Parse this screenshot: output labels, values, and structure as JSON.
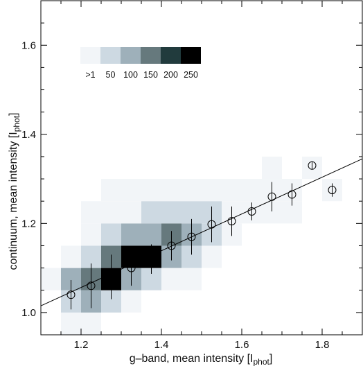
{
  "chart_data": {
    "type": "heatmap",
    "xlabel": "g–band,  mean intensity  [I",
    "xlabel_sub": "phot",
    "xlabel_close": "]",
    "ylabel": "continuum,  mean intensity  [I",
    "ylabel_sub": "phot",
    "ylabel_close": "]",
    "xlim": [
      1.1,
      1.9
    ],
    "ylim": [
      0.95,
      1.7
    ],
    "xticks": [
      1.2,
      1.4,
      1.6,
      1.8
    ],
    "xtick_labels": [
      "1.2",
      "1.4",
      "1.6",
      "1.8"
    ],
    "xminor_step": 0.05,
    "yticks": [
      1.0,
      1.2,
      1.4,
      1.6
    ],
    "ytick_labels": [
      "1.0",
      "1.2",
      "1.4",
      "1.6"
    ],
    "yminor_step": 0.05,
    "bin_width_x": 0.05,
    "bin_height_y": 0.05,
    "color_scale": {
      "levels": [
        ">1",
        "50",
        "100",
        "150",
        "200",
        "250"
      ],
      "colors": [
        "#f2f5f8",
        "#cdd9e2",
        "#9eb0ba",
        "#66797d",
        "#213b3d",
        "#000000"
      ]
    },
    "cells": [
      {
        "x": 1.15,
        "y": 0.95,
        "level": 1
      },
      {
        "x": 1.2,
        "y": 0.95,
        "level": 1
      },
      {
        "x": 1.15,
        "y": 1.0,
        "level": 2
      },
      {
        "x": 1.2,
        "y": 1.0,
        "level": 3
      },
      {
        "x": 1.25,
        "y": 1.0,
        "level": 2
      },
      {
        "x": 1.3,
        "y": 1.0,
        "level": 1
      },
      {
        "x": 1.1,
        "y": 1.05,
        "level": 1
      },
      {
        "x": 1.15,
        "y": 1.05,
        "level": 3
      },
      {
        "x": 1.2,
        "y": 1.05,
        "level": 4
      },
      {
        "x": 1.25,
        "y": 1.05,
        "level": 6
      },
      {
        "x": 1.3,
        "y": 1.05,
        "level": 3
      },
      {
        "x": 1.35,
        "y": 1.05,
        "level": 2
      },
      {
        "x": 1.4,
        "y": 1.05,
        "level": 1
      },
      {
        "x": 1.45,
        "y": 1.05,
        "level": 1
      },
      {
        "x": 1.15,
        "y": 1.1,
        "level": 1
      },
      {
        "x": 1.2,
        "y": 1.1,
        "level": 2
      },
      {
        "x": 1.25,
        "y": 1.1,
        "level": 4
      },
      {
        "x": 1.3,
        "y": 1.1,
        "level": 6
      },
      {
        "x": 1.35,
        "y": 1.1,
        "level": 6
      },
      {
        "x": 1.4,
        "y": 1.1,
        "level": 3
      },
      {
        "x": 1.45,
        "y": 1.1,
        "level": 2
      },
      {
        "x": 1.5,
        "y": 1.1,
        "level": 1
      },
      {
        "x": 1.2,
        "y": 1.15,
        "level": 1
      },
      {
        "x": 1.25,
        "y": 1.15,
        "level": 2
      },
      {
        "x": 1.3,
        "y": 1.15,
        "level": 3
      },
      {
        "x": 1.35,
        "y": 1.15,
        "level": 3
      },
      {
        "x": 1.4,
        "y": 1.15,
        "level": 4
      },
      {
        "x": 1.45,
        "y": 1.15,
        "level": 3
      },
      {
        "x": 1.5,
        "y": 1.15,
        "level": 2
      },
      {
        "x": 1.55,
        "y": 1.15,
        "level": 1
      },
      {
        "x": 1.2,
        "y": 1.2,
        "level": 1
      },
      {
        "x": 1.25,
        "y": 1.2,
        "level": 1
      },
      {
        "x": 1.3,
        "y": 1.2,
        "level": 1
      },
      {
        "x": 1.35,
        "y": 1.2,
        "level": 2
      },
      {
        "x": 1.4,
        "y": 1.2,
        "level": 2
      },
      {
        "x": 1.45,
        "y": 1.2,
        "level": 2
      },
      {
        "x": 1.5,
        "y": 1.2,
        "level": 2
      },
      {
        "x": 1.55,
        "y": 1.2,
        "level": 1
      },
      {
        "x": 1.6,
        "y": 1.2,
        "level": 1
      },
      {
        "x": 1.65,
        "y": 1.2,
        "level": 1
      },
      {
        "x": 1.7,
        "y": 1.2,
        "level": 1
      },
      {
        "x": 1.25,
        "y": 1.25,
        "level": 1
      },
      {
        "x": 1.3,
        "y": 1.25,
        "level": 1
      },
      {
        "x": 1.35,
        "y": 1.25,
        "level": 1
      },
      {
        "x": 1.4,
        "y": 1.25,
        "level": 1
      },
      {
        "x": 1.45,
        "y": 1.25,
        "level": 1
      },
      {
        "x": 1.5,
        "y": 1.25,
        "level": 1
      },
      {
        "x": 1.55,
        "y": 1.25,
        "level": 1
      },
      {
        "x": 1.6,
        "y": 1.25,
        "level": 1
      },
      {
        "x": 1.65,
        "y": 1.25,
        "level": 1
      },
      {
        "x": 1.7,
        "y": 1.25,
        "level": 1
      },
      {
        "x": 1.8,
        "y": 1.25,
        "level": 1
      },
      {
        "x": 1.65,
        "y": 1.3,
        "level": 1
      },
      {
        "x": 1.75,
        "y": 1.3,
        "level": 1
      }
    ],
    "binned_means": [
      {
        "x": 1.175,
        "y": 1.04,
        "err": 0.033
      },
      {
        "x": 1.225,
        "y": 1.06,
        "err": 0.05
      },
      {
        "x": 1.275,
        "y": 1.08,
        "err": 0.05
      },
      {
        "x": 1.325,
        "y": 1.1,
        "err": 0.04
      },
      {
        "x": 1.375,
        "y": 1.12,
        "err": 0.033
      },
      {
        "x": 1.425,
        "y": 1.15,
        "err": 0.033
      },
      {
        "x": 1.475,
        "y": 1.17,
        "err": 0.04
      },
      {
        "x": 1.525,
        "y": 1.198,
        "err": 0.04
      },
      {
        "x": 1.575,
        "y": 1.205,
        "err": 0.033
      },
      {
        "x": 1.625,
        "y": 1.227,
        "err": 0.02
      },
      {
        "x": 1.675,
        "y": 1.26,
        "err": 0.033
      },
      {
        "x": 1.725,
        "y": 1.265,
        "err": 0.025
      },
      {
        "x": 1.775,
        "y": 1.33,
        "err": 0.008
      },
      {
        "x": 1.825,
        "y": 1.275,
        "err": 0.015
      }
    ],
    "fit_line": {
      "x": [
        1.1,
        1.9
      ],
      "y": [
        1.015,
        1.345
      ]
    },
    "legend_position": "top-left",
    "grid": false
  }
}
